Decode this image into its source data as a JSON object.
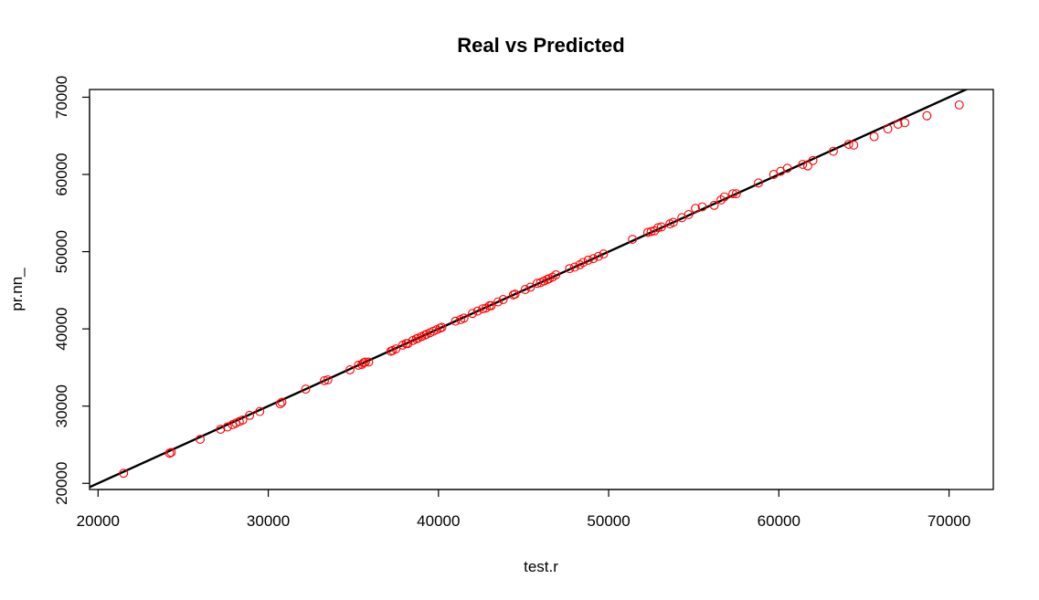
{
  "chart_data": {
    "type": "scatter",
    "title": "Real vs Predicted",
    "xlabel": "test.r",
    "ylabel": "pr.nn_",
    "xlim": [
      19500,
      72600
    ],
    "ylim": [
      19200,
      71000
    ],
    "x_ticks": [
      20000,
      30000,
      40000,
      50000,
      60000,
      70000
    ],
    "y_ticks": [
      20000,
      30000,
      40000,
      50000,
      60000,
      70000
    ],
    "x_tick_labels": [
      "20000",
      "30000",
      "40000",
      "50000",
      "60000",
      "70000"
    ],
    "y_tick_labels": [
      "20000",
      "30000",
      "40000",
      "50000",
      "60000",
      "70000"
    ],
    "reference_line": {
      "intercept": 0,
      "slope": 1
    },
    "grid": false,
    "point_color": "#ff0000",
    "line_color": "#000000",
    "series": [
      {
        "x": [
          21500,
          24200,
          24300,
          26000,
          27200,
          27600,
          27900,
          28100,
          28300,
          28500,
          28900,
          29500,
          30700,
          30800,
          32200,
          33300,
          33500,
          34800,
          35300,
          35500,
          35600,
          35700,
          35900,
          37200,
          37300,
          37500,
          37900,
          38100,
          38200,
          38500,
          38700,
          38800,
          39000,
          39200,
          39300,
          39500,
          39700,
          39900,
          40100,
          40200,
          41000,
          41300,
          41500,
          42000,
          42300,
          42600,
          42800,
          43000,
          43100,
          43500,
          43800,
          44400,
          44500,
          45100,
          45400,
          45800,
          46000,
          46200,
          46400,
          46500,
          46700,
          46900,
          47700,
          48000,
          48300,
          48500,
          48800,
          49100,
          49400,
          49700,
          51400,
          52300,
          52500,
          52700,
          52900,
          53100,
          53600,
          53800,
          54300,
          54700,
          55100,
          55500,
          56200,
          56600,
          56800,
          57300,
          57500,
          58800,
          59700,
          60100,
          60500,
          61400,
          61700,
          62000,
          63200,
          64100,
          64400,
          65600,
          66400,
          67000,
          67400,
          68700,
          70600
        ],
        "y": [
          21300,
          23900,
          24000,
          25700,
          27000,
          27300,
          27600,
          27800,
          28000,
          28200,
          28800,
          29300,
          30300,
          30500,
          32200,
          33300,
          33400,
          34700,
          35300,
          35400,
          35600,
          35700,
          35700,
          37100,
          37200,
          37400,
          37900,
          38100,
          38100,
          38500,
          38700,
          38800,
          39000,
          39200,
          39300,
          39500,
          39700,
          39900,
          40100,
          40200,
          41000,
          41200,
          41400,
          42000,
          42300,
          42600,
          42700,
          43000,
          43000,
          43500,
          43800,
          44400,
          44500,
          45100,
          45400,
          45900,
          46000,
          46200,
          46400,
          46500,
          46700,
          47000,
          47800,
          48000,
          48300,
          48600,
          48900,
          49100,
          49400,
          49700,
          51600,
          52500,
          52600,
          52700,
          53100,
          53200,
          53600,
          53800,
          54400,
          54800,
          55600,
          55800,
          56000,
          56700,
          57100,
          57500,
          57500,
          58900,
          60000,
          60400,
          60800,
          61300,
          61100,
          61800,
          63000,
          63900,
          63800,
          64900,
          65900,
          66500,
          66700,
          67600,
          69000
        ]
      }
    ]
  }
}
